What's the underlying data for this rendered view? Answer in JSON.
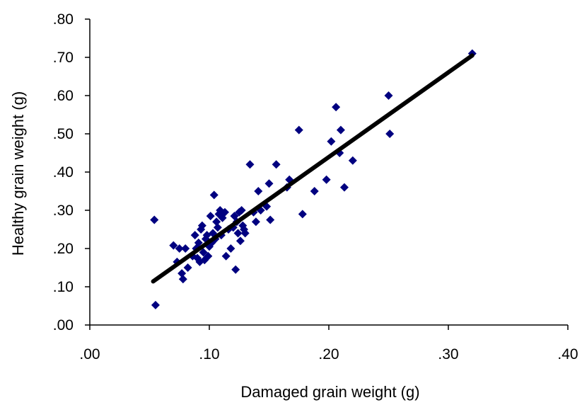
{
  "chart_data": {
    "type": "scatter",
    "title": "",
    "xlabel": "Damaged grain weight (g)",
    "ylabel": "Healthy grain weight (g)",
    "xlim": [
      0,
      0.4
    ],
    "ylim": [
      0,
      0.8
    ],
    "xticks": [
      {
        "value": 0.0,
        "label": ".00"
      },
      {
        "value": 0.1,
        "label": ".10"
      },
      {
        "value": 0.2,
        "label": ".20"
      },
      {
        "value": 0.3,
        "label": ".30"
      },
      {
        "value": 0.4,
        "label": ".40"
      }
    ],
    "yticks": [
      {
        "value": 0.0,
        "label": ".00"
      },
      {
        "value": 0.1,
        "label": ".10"
      },
      {
        "value": 0.2,
        "label": ".20"
      },
      {
        "value": 0.3,
        "label": ".30"
      },
      {
        "value": 0.4,
        "label": ".40"
      },
      {
        "value": 0.5,
        "label": ".50"
      },
      {
        "value": 0.6,
        "label": ".60"
      },
      {
        "value": 0.7,
        "label": ".70"
      },
      {
        "value": 0.8,
        "label": ".80"
      }
    ],
    "grid": false,
    "legend": "none",
    "marker_color": "#000080",
    "line_color": "#000000",
    "series": [
      {
        "points": [
          [
            0.054,
            0.275
          ],
          [
            0.055,
            0.052
          ],
          [
            0.07,
            0.208
          ],
          [
            0.073,
            0.165
          ],
          [
            0.075,
            0.2
          ],
          [
            0.077,
            0.135
          ],
          [
            0.078,
            0.12
          ],
          [
            0.08,
            0.2
          ],
          [
            0.082,
            0.15
          ],
          [
            0.086,
            0.18
          ],
          [
            0.088,
            0.235
          ],
          [
            0.089,
            0.2
          ],
          [
            0.09,
            0.175
          ],
          [
            0.091,
            0.215
          ],
          [
            0.092,
            0.165
          ],
          [
            0.093,
            0.25
          ],
          [
            0.094,
            0.26
          ],
          [
            0.095,
            0.19
          ],
          [
            0.096,
            0.17
          ],
          [
            0.097,
            0.225
          ],
          [
            0.098,
            0.235
          ],
          [
            0.099,
            0.18
          ],
          [
            0.1,
            0.205
          ],
          [
            0.101,
            0.285
          ],
          [
            0.102,
            0.215
          ],
          [
            0.103,
            0.24
          ],
          [
            0.104,
            0.34
          ],
          [
            0.105,
            0.225
          ],
          [
            0.106,
            0.27
          ],
          [
            0.107,
            0.255
          ],
          [
            0.108,
            0.29
          ],
          [
            0.109,
            0.3
          ],
          [
            0.11,
            0.235
          ],
          [
            0.111,
            0.28
          ],
          [
            0.113,
            0.295
          ],
          [
            0.114,
            0.18
          ],
          [
            0.116,
            0.25
          ],
          [
            0.118,
            0.2
          ],
          [
            0.12,
            0.255
          ],
          [
            0.121,
            0.285
          ],
          [
            0.122,
            0.145
          ],
          [
            0.123,
            0.27
          ],
          [
            0.124,
            0.24
          ],
          [
            0.125,
            0.295
          ],
          [
            0.126,
            0.22
          ],
          [
            0.127,
            0.3
          ],
          [
            0.128,
            0.26
          ],
          [
            0.129,
            0.25
          ],
          [
            0.13,
            0.24
          ],
          [
            0.134,
            0.42
          ],
          [
            0.137,
            0.295
          ],
          [
            0.139,
            0.27
          ],
          [
            0.141,
            0.35
          ],
          [
            0.143,
            0.3
          ],
          [
            0.148,
            0.31
          ],
          [
            0.15,
            0.37
          ],
          [
            0.151,
            0.275
          ],
          [
            0.156,
            0.42
          ],
          [
            0.165,
            0.36
          ],
          [
            0.167,
            0.38
          ],
          [
            0.175,
            0.51
          ],
          [
            0.178,
            0.29
          ],
          [
            0.188,
            0.35
          ],
          [
            0.198,
            0.38
          ],
          [
            0.202,
            0.48
          ],
          [
            0.206,
            0.57
          ],
          [
            0.209,
            0.45
          ],
          [
            0.21,
            0.51
          ],
          [
            0.213,
            0.36
          ],
          [
            0.22,
            0.43
          ],
          [
            0.25,
            0.6
          ],
          [
            0.251,
            0.5
          ],
          [
            0.32,
            0.71
          ]
        ]
      }
    ],
    "trendline": {
      "x": [
        0.053,
        0.32
      ],
      "y": [
        0.114,
        0.705
      ]
    }
  }
}
